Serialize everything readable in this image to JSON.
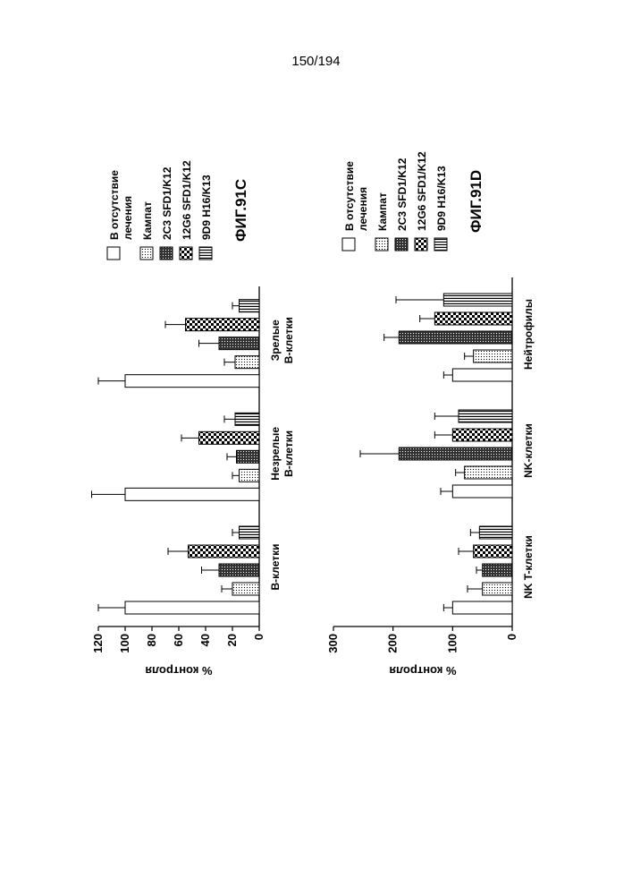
{
  "page_number": "150/194",
  "chart_data": [
    {
      "type": "bar",
      "figure_label": "ФИГ.91C",
      "ylabel": "% контроля",
      "ylim": [
        0,
        120
      ],
      "yticks": [
        0,
        20,
        40,
        60,
        80,
        100,
        120
      ],
      "categories": [
        [
          "B-клетки"
        ],
        [
          "Незрелые",
          "B-клетки"
        ],
        [
          "Зрелые",
          "B-клетки"
        ]
      ],
      "series": [
        {
          "name": [
            "В отсутствие",
            "лечения"
          ],
          "pattern": "empty",
          "values": [
            100,
            100,
            100
          ],
          "errors": [
            20,
            25,
            20
          ]
        },
        {
          "name": [
            "Кампат"
          ],
          "pattern": "dots",
          "values": [
            20,
            15,
            18
          ],
          "errors": [
            8,
            5,
            8
          ]
        },
        {
          "name": [
            "2C3 SFD1/K12"
          ],
          "pattern": "dense",
          "values": [
            30,
            17,
            30
          ],
          "errors": [
            13,
            7,
            15
          ]
        },
        {
          "name": [
            "12G6 SFD1/K12"
          ],
          "pattern": "checker",
          "values": [
            53,
            45,
            55
          ],
          "errors": [
            15,
            13,
            15
          ]
        },
        {
          "name": [
            "9D9 H16/K13"
          ],
          "pattern": "hstripes",
          "values": [
            15,
            18,
            15
          ],
          "errors": [
            5,
            8,
            5
          ]
        }
      ]
    },
    {
      "type": "bar",
      "figure_label": "ФИГ.91D",
      "ylabel": "% контроля",
      "ylim": [
        0,
        300
      ],
      "yticks": [
        0,
        100,
        200,
        300
      ],
      "categories": [
        [
          "NK T-клетки"
        ],
        [
          "NK-клетки"
        ],
        [
          "Нейтрофилы"
        ]
      ],
      "series": [
        {
          "name": [
            "В отсутствие",
            "лечения"
          ],
          "pattern": "empty",
          "values": [
            100,
            100,
            100
          ],
          "errors": [
            15,
            20,
            15
          ]
        },
        {
          "name": [
            "Кампат"
          ],
          "pattern": "dots",
          "values": [
            50,
            80,
            65
          ],
          "errors": [
            25,
            15,
            15
          ]
        },
        {
          "name": [
            "2C3 SFD1/K12"
          ],
          "pattern": "dense",
          "values": [
            50,
            190,
            190
          ],
          "errors": [
            10,
            65,
            25
          ]
        },
        {
          "name": [
            "12G6 SFD1/K12"
          ],
          "pattern": "checker",
          "values": [
            65,
            100,
            130
          ],
          "errors": [
            25,
            30,
            25
          ]
        },
        {
          "name": [
            "9D9 H16/K13"
          ],
          "pattern": "hstripes",
          "values": [
            55,
            90,
            115
          ],
          "errors": [
            15,
            40,
            80
          ]
        }
      ]
    }
  ]
}
